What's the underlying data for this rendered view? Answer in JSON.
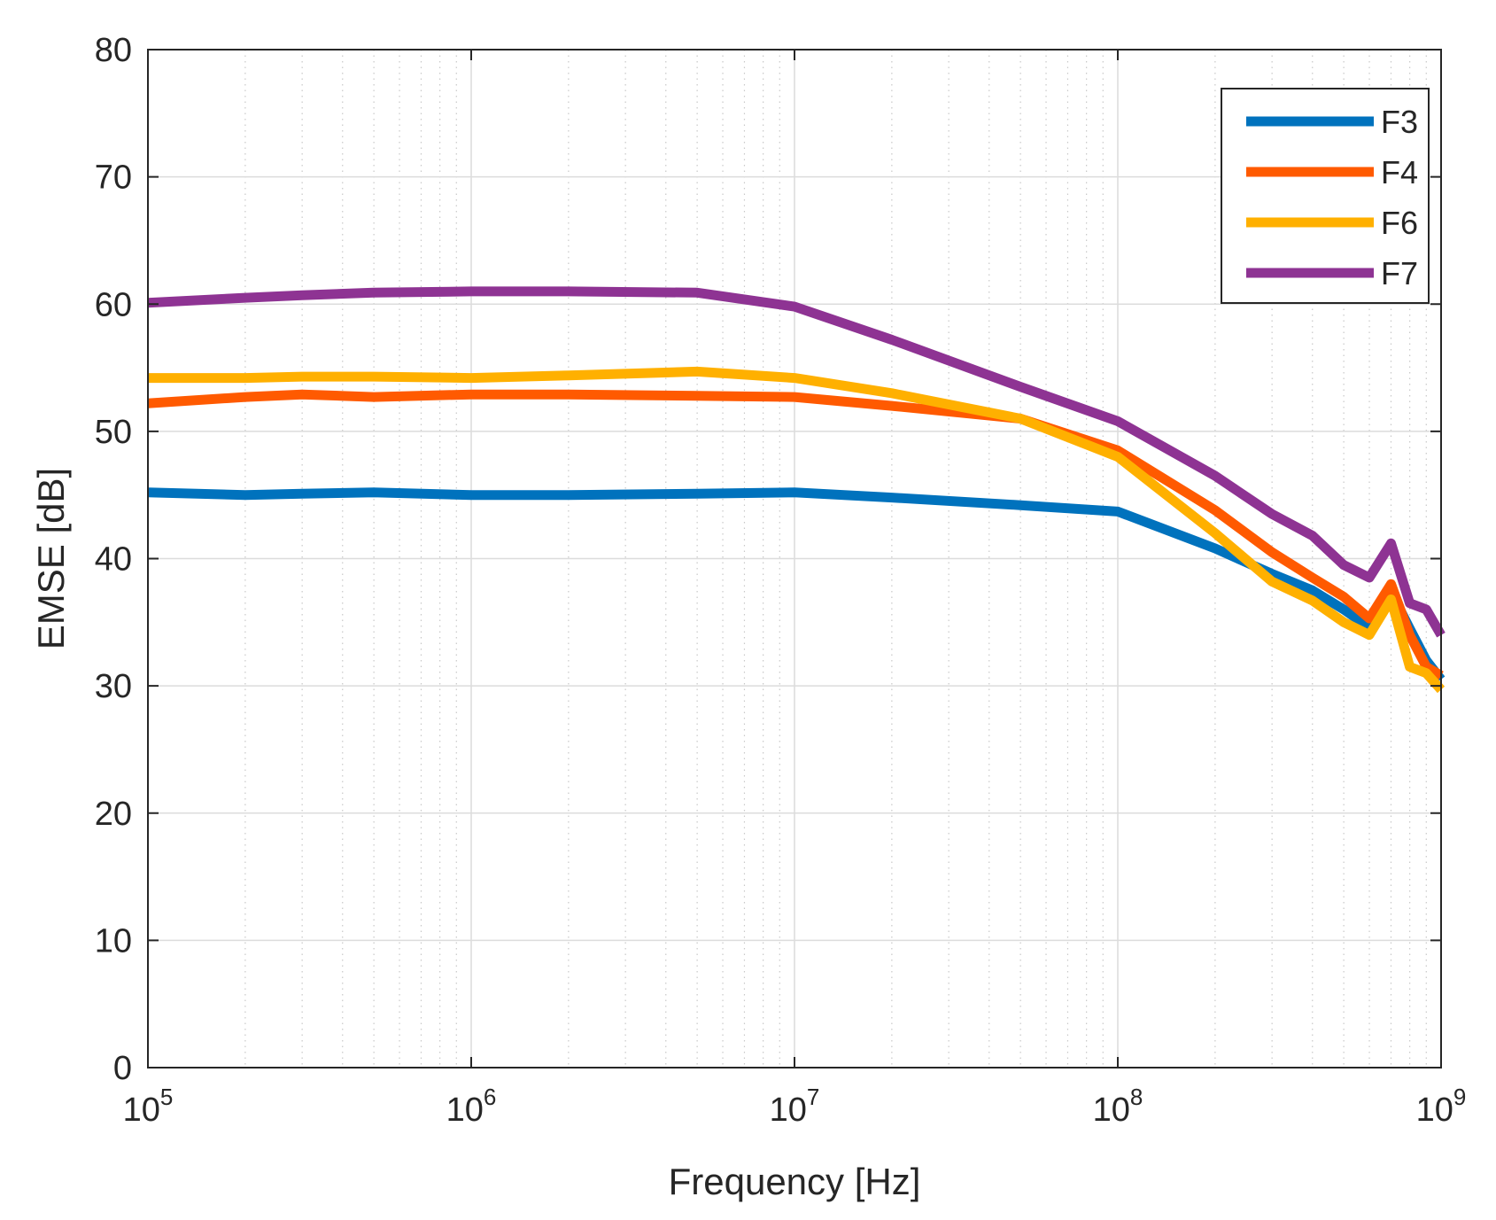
{
  "chart_data": {
    "type": "line",
    "title": "",
    "xlabel": "Frequency [Hz]",
    "ylabel": "EMSE [dB]",
    "xscale": "log",
    "xlim": [
      100000,
      1000000000
    ],
    "ylim": [
      0,
      80
    ],
    "grid": true,
    "legend_position": "top-right",
    "x_ticks": [
      {
        "value": 100000,
        "base": "10",
        "exp": "5"
      },
      {
        "value": 1000000,
        "base": "10",
        "exp": "6"
      },
      {
        "value": 10000000,
        "base": "10",
        "exp": "7"
      },
      {
        "value": 100000000,
        "base": "10",
        "exp": "8"
      },
      {
        "value": 1000000000,
        "base": "10",
        "exp": "9"
      }
    ],
    "y_ticks": [
      {
        "value": 0,
        "label": "0"
      },
      {
        "value": 10,
        "label": "10"
      },
      {
        "value": 20,
        "label": "20"
      },
      {
        "value": 30,
        "label": "30"
      },
      {
        "value": 40,
        "label": "40"
      },
      {
        "value": 50,
        "label": "50"
      },
      {
        "value": 60,
        "label": "60"
      },
      {
        "value": 70,
        "label": "70"
      },
      {
        "value": 80,
        "label": "80"
      }
    ],
    "series": [
      {
        "name": "F3",
        "color": "#0072BD",
        "x": [
          100000,
          200000,
          300000,
          500000,
          1000000,
          2000000,
          5000000,
          10000000,
          20000000,
          50000000,
          100000000,
          200000000,
          300000000,
          400000000,
          500000000,
          600000000,
          700000000,
          800000000,
          900000000,
          1000000000
        ],
        "y": [
          45.2,
          45.0,
          45.1,
          45.2,
          45.0,
          45.0,
          45.1,
          45.2,
          44.8,
          44.2,
          43.7,
          40.8,
          38.8,
          37.5,
          36.0,
          34.6,
          37.4,
          34.5,
          32.0,
          30.5
        ]
      },
      {
        "name": "F4",
        "color": "#FF5A00",
        "x": [
          100000,
          200000,
          300000,
          500000,
          1000000,
          2000000,
          5000000,
          10000000,
          20000000,
          50000000,
          100000000,
          200000000,
          300000000,
          400000000,
          500000000,
          600000000,
          700000000,
          800000000,
          900000000,
          1000000000
        ],
        "y": [
          52.2,
          52.7,
          52.9,
          52.7,
          52.9,
          52.9,
          52.8,
          52.7,
          52.0,
          51.0,
          48.5,
          43.8,
          40.5,
          38.5,
          37.0,
          35.3,
          38.0,
          34.0,
          31.5,
          30.8
        ]
      },
      {
        "name": "F6",
        "color": "#FFB000",
        "x": [
          100000,
          200000,
          300000,
          500000,
          1000000,
          2000000,
          5000000,
          10000000,
          20000000,
          50000000,
          100000000,
          200000000,
          300000000,
          400000000,
          500000000,
          600000000,
          700000000,
          800000000,
          900000000,
          1000000000
        ],
        "y": [
          54.2,
          54.2,
          54.3,
          54.3,
          54.2,
          54.4,
          54.7,
          54.2,
          53.0,
          51.0,
          48.0,
          42.0,
          38.2,
          36.7,
          35.0,
          34.0,
          36.8,
          31.5,
          31.0,
          29.7
        ]
      },
      {
        "name": "F7",
        "color": "#8E3393",
        "x": [
          100000,
          200000,
          300000,
          500000,
          1000000,
          2000000,
          5000000,
          10000000,
          20000000,
          50000000,
          100000000,
          200000000,
          300000000,
          400000000,
          500000000,
          600000000,
          700000000,
          800000000,
          900000000,
          1000000000
        ],
        "y": [
          60.1,
          60.5,
          60.7,
          60.9,
          61.0,
          61.0,
          60.9,
          59.8,
          57.2,
          53.5,
          50.8,
          46.5,
          43.5,
          41.8,
          39.5,
          38.5,
          41.2,
          36.5,
          36.0,
          34.0
        ]
      }
    ]
  }
}
